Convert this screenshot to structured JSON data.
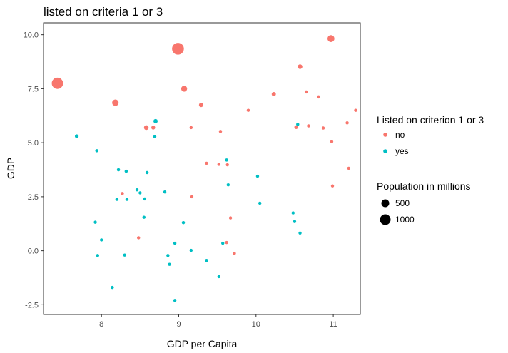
{
  "chart_data": {
    "type": "scatter",
    "title": "listed on criteria 1 or 3",
    "xlabel": "GDP per Capita",
    "ylabel": "GDP",
    "xlim": [
      7.25,
      11.35
    ],
    "ylim": [
      -2.95,
      10.55
    ],
    "x_ticks": [
      8,
      9,
      10,
      11
    ],
    "y_ticks": [
      -2.5,
      0.0,
      2.5,
      5.0,
      7.5,
      10.0
    ],
    "x_tick_labels": [
      "8",
      "9",
      "10",
      "11"
    ],
    "y_tick_labels": [
      "-2.5",
      "0.0",
      "2.5",
      "5.0",
      "7.5",
      "10.0"
    ],
    "grid": false,
    "legend_placement": "right",
    "color_legend": {
      "title": "Listed on criterion 1 or 3",
      "entries": [
        {
          "label": "no",
          "color": "#F8766D"
        },
        {
          "label": "yes",
          "color": "#00BFC4"
        }
      ]
    },
    "size_legend": {
      "title": "Population in millions",
      "entries": [
        {
          "label": "500",
          "value": 500
        },
        {
          "label": "1000",
          "value": 1000
        }
      ]
    },
    "series": [
      {
        "name": "no",
        "color": "#F8766D",
        "points": [
          {
            "x": 7.43,
            "y": 7.75,
            "pop": 1000
          },
          {
            "x": 8.99,
            "y": 9.35,
            "pop": 1100
          },
          {
            "x": 10.97,
            "y": 9.82,
            "pop": 380
          },
          {
            "x": 10.57,
            "y": 8.52,
            "pop": 170
          },
          {
            "x": 9.07,
            "y": 7.5,
            "pop": 280
          },
          {
            "x": 8.18,
            "y": 6.85,
            "pop": 330
          },
          {
            "x": 9.29,
            "y": 6.75,
            "pop": 150
          },
          {
            "x": 10.23,
            "y": 7.25,
            "pop": 140
          },
          {
            "x": 10.65,
            "y": 7.35,
            "pop": 80
          },
          {
            "x": 10.81,
            "y": 7.12,
            "pop": 80
          },
          {
            "x": 11.29,
            "y": 6.5,
            "pop": 80
          },
          {
            "x": 9.9,
            "y": 6.5,
            "pop": 80
          },
          {
            "x": 11.18,
            "y": 5.92,
            "pop": 80
          },
          {
            "x": 8.58,
            "y": 5.7,
            "pop": 170
          },
          {
            "x": 8.67,
            "y": 5.7,
            "pop": 120
          },
          {
            "x": 9.16,
            "y": 5.7,
            "pop": 80
          },
          {
            "x": 9.54,
            "y": 5.52,
            "pop": 80
          },
          {
            "x": 10.52,
            "y": 5.72,
            "pop": 110
          },
          {
            "x": 10.68,
            "y": 5.78,
            "pop": 80
          },
          {
            "x": 10.87,
            "y": 5.68,
            "pop": 80
          },
          {
            "x": 10.98,
            "y": 5.05,
            "pop": 40
          },
          {
            "x": 9.36,
            "y": 4.05,
            "pop": 80
          },
          {
            "x": 9.52,
            "y": 4.0,
            "pop": 80
          },
          {
            "x": 9.63,
            "y": 3.98,
            "pop": 40
          },
          {
            "x": 11.2,
            "y": 3.82,
            "pop": 40
          },
          {
            "x": 8.27,
            "y": 2.65,
            "pop": 80
          },
          {
            "x": 9.17,
            "y": 2.5,
            "pop": 40
          },
          {
            "x": 10.99,
            "y": 3.0,
            "pop": 40
          },
          {
            "x": 9.67,
            "y": 1.52,
            "pop": 40
          },
          {
            "x": 8.48,
            "y": 0.6,
            "pop": 40
          },
          {
            "x": 9.62,
            "y": 0.38,
            "pop": 40
          },
          {
            "x": 9.72,
            "y": -0.12,
            "pop": 40
          }
        ]
      },
      {
        "name": "yes",
        "color": "#00BFC4",
        "points": [
          {
            "x": 7.68,
            "y": 5.3,
            "pop": 110
          },
          {
            "x": 8.7,
            "y": 6.0,
            "pop": 140
          },
          {
            "x": 8.69,
            "y": 5.28,
            "pop": 80
          },
          {
            "x": 10.54,
            "y": 5.85,
            "pop": 80
          },
          {
            "x": 7.94,
            "y": 4.63,
            "pop": 80
          },
          {
            "x": 9.62,
            "y": 4.2,
            "pop": 80
          },
          {
            "x": 8.22,
            "y": 3.75,
            "pop": 80
          },
          {
            "x": 8.32,
            "y": 3.68,
            "pop": 80
          },
          {
            "x": 8.59,
            "y": 3.62,
            "pop": 80
          },
          {
            "x": 10.02,
            "y": 3.45,
            "pop": 40
          },
          {
            "x": 9.64,
            "y": 3.05,
            "pop": 40
          },
          {
            "x": 8.46,
            "y": 2.82,
            "pop": 80
          },
          {
            "x": 8.5,
            "y": 2.68,
            "pop": 40
          },
          {
            "x": 8.82,
            "y": 2.72,
            "pop": 40
          },
          {
            "x": 8.2,
            "y": 2.38,
            "pop": 80
          },
          {
            "x": 8.33,
            "y": 2.38,
            "pop": 40
          },
          {
            "x": 8.56,
            "y": 2.4,
            "pop": 40
          },
          {
            "x": 10.05,
            "y": 2.2,
            "pop": 40
          },
          {
            "x": 10.48,
            "y": 1.75,
            "pop": 40
          },
          {
            "x": 8.55,
            "y": 1.55,
            "pop": 40
          },
          {
            "x": 10.5,
            "y": 1.35,
            "pop": 40
          },
          {
            "x": 7.92,
            "y": 1.32,
            "pop": 40
          },
          {
            "x": 9.06,
            "y": 1.3,
            "pop": 40
          },
          {
            "x": 10.57,
            "y": 0.82,
            "pop": 40
          },
          {
            "x": 8.0,
            "y": 0.5,
            "pop": 40
          },
          {
            "x": 8.95,
            "y": 0.35,
            "pop": 40
          },
          {
            "x": 9.57,
            "y": 0.35,
            "pop": 40
          },
          {
            "x": 9.16,
            "y": 0.02,
            "pop": 40
          },
          {
            "x": 7.95,
            "y": -0.22,
            "pop": 40
          },
          {
            "x": 8.3,
            "y": -0.2,
            "pop": 40
          },
          {
            "x": 8.86,
            "y": -0.22,
            "pop": 40
          },
          {
            "x": 9.36,
            "y": -0.45,
            "pop": 40
          },
          {
            "x": 8.88,
            "y": -0.63,
            "pop": 40
          },
          {
            "x": 9.52,
            "y": -1.2,
            "pop": 40
          },
          {
            "x": 8.14,
            "y": -1.7,
            "pop": 40
          },
          {
            "x": 8.95,
            "y": -2.3,
            "pop": 40
          }
        ]
      }
    ]
  }
}
